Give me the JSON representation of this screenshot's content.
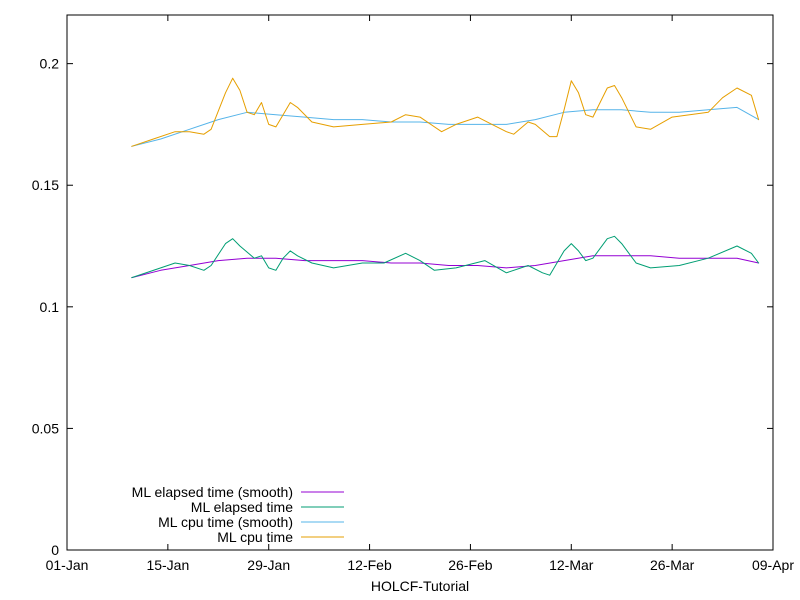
{
  "chart_data": {
    "type": "line",
    "title": "",
    "xlabel": "HOLCF-Tutorial",
    "ylabel": "",
    "x_axis": {
      "type": "date",
      "range": [
        "2014-01-01",
        "2014-04-09"
      ],
      "ticks": [
        {
          "date": "2014-01-01",
          "label": "01-Jan"
        },
        {
          "date": "2014-01-15",
          "label": "15-Jan"
        },
        {
          "date": "2014-01-29",
          "label": "29-Jan"
        },
        {
          "date": "2014-02-12",
          "label": "12-Feb"
        },
        {
          "date": "2014-02-26",
          "label": "26-Feb"
        },
        {
          "date": "2014-03-12",
          "label": "12-Mar"
        },
        {
          "date": "2014-03-26",
          "label": "26-Mar"
        },
        {
          "date": "2014-04-09",
          "label": "09-Apr"
        }
      ]
    },
    "y_axis": {
      "range": [
        0,
        0.22
      ],
      "ticks": [
        {
          "value": 0,
          "label": "0"
        },
        {
          "value": 0.05,
          "label": "0.05"
        },
        {
          "value": 0.1,
          "label": "0.1"
        },
        {
          "value": 0.15,
          "label": "0.15"
        },
        {
          "value": 0.2,
          "label": "0.2"
        }
      ]
    },
    "grid": false,
    "legend_position": "bottom-left",
    "series": [
      {
        "name": "ML elapsed time (smooth)",
        "color": "#9400d3",
        "points": [
          [
            "2014-01-10",
            0.112
          ],
          [
            "2014-01-14",
            0.115
          ],
          [
            "2014-01-18",
            0.117
          ],
          [
            "2014-01-22",
            0.119
          ],
          [
            "2014-01-26",
            0.12
          ],
          [
            "2014-01-30",
            0.12
          ],
          [
            "2014-02-03",
            0.119
          ],
          [
            "2014-02-07",
            0.119
          ],
          [
            "2014-02-11",
            0.119
          ],
          [
            "2014-02-15",
            0.118
          ],
          [
            "2014-02-19",
            0.118
          ],
          [
            "2014-02-23",
            0.117
          ],
          [
            "2014-02-27",
            0.117
          ],
          [
            "2014-03-03",
            0.116
          ],
          [
            "2014-03-07",
            0.117
          ],
          [
            "2014-03-11",
            0.119
          ],
          [
            "2014-03-15",
            0.121
          ],
          [
            "2014-03-19",
            0.121
          ],
          [
            "2014-03-23",
            0.121
          ],
          [
            "2014-03-27",
            0.12
          ],
          [
            "2014-03-31",
            0.12
          ],
          [
            "2014-04-04",
            0.12
          ],
          [
            "2014-04-07",
            0.118
          ]
        ]
      },
      {
        "name": "ML elapsed time",
        "color": "#009e73",
        "points": [
          [
            "2014-01-10",
            0.112
          ],
          [
            "2014-01-14",
            0.116
          ],
          [
            "2014-01-16",
            0.118
          ],
          [
            "2014-01-18",
            0.117
          ],
          [
            "2014-01-20",
            0.115
          ],
          [
            "2014-01-21",
            0.117
          ],
          [
            "2014-01-23",
            0.126
          ],
          [
            "2014-01-24",
            0.128
          ],
          [
            "2014-01-25",
            0.125
          ],
          [
            "2014-01-27",
            0.12
          ],
          [
            "2014-01-28",
            0.121
          ],
          [
            "2014-01-29",
            0.116
          ],
          [
            "2014-01-30",
            0.115
          ],
          [
            "2014-01-31",
            0.12
          ],
          [
            "2014-02-01",
            0.123
          ],
          [
            "2014-02-02",
            0.121
          ],
          [
            "2014-02-04",
            0.118
          ],
          [
            "2014-02-07",
            0.116
          ],
          [
            "2014-02-11",
            0.118
          ],
          [
            "2014-02-14",
            0.118
          ],
          [
            "2014-02-17",
            0.122
          ],
          [
            "2014-02-19",
            0.119
          ],
          [
            "2014-02-21",
            0.115
          ],
          [
            "2014-02-24",
            0.116
          ],
          [
            "2014-02-28",
            0.119
          ],
          [
            "2014-03-03",
            0.114
          ],
          [
            "2014-03-06",
            0.117
          ],
          [
            "2014-03-08",
            0.114
          ],
          [
            "2014-03-09",
            0.113
          ],
          [
            "2014-03-11",
            0.123
          ],
          [
            "2014-03-12",
            0.126
          ],
          [
            "2014-03-13",
            0.123
          ],
          [
            "2014-03-14",
            0.119
          ],
          [
            "2014-03-15",
            0.12
          ],
          [
            "2014-03-17",
            0.128
          ],
          [
            "2014-03-18",
            0.129
          ],
          [
            "2014-03-19",
            0.126
          ],
          [
            "2014-03-21",
            0.118
          ],
          [
            "2014-03-23",
            0.116
          ],
          [
            "2014-03-27",
            0.117
          ],
          [
            "2014-03-31",
            0.12
          ],
          [
            "2014-04-04",
            0.125
          ],
          [
            "2014-04-06",
            0.122
          ],
          [
            "2014-04-07",
            0.118
          ]
        ]
      },
      {
        "name": "ML cpu time (smooth)",
        "color": "#56b4e9",
        "points": [
          [
            "2014-01-10",
            0.166
          ],
          [
            "2014-01-14",
            0.169
          ],
          [
            "2014-01-18",
            0.173
          ],
          [
            "2014-01-22",
            0.177
          ],
          [
            "2014-01-26",
            0.18
          ],
          [
            "2014-01-30",
            0.179
          ],
          [
            "2014-02-03",
            0.178
          ],
          [
            "2014-02-07",
            0.177
          ],
          [
            "2014-02-11",
            0.177
          ],
          [
            "2014-02-15",
            0.176
          ],
          [
            "2014-02-19",
            0.176
          ],
          [
            "2014-02-23",
            0.175
          ],
          [
            "2014-02-27",
            0.175
          ],
          [
            "2014-03-03",
            0.175
          ],
          [
            "2014-03-07",
            0.177
          ],
          [
            "2014-03-11",
            0.18
          ],
          [
            "2014-03-15",
            0.181
          ],
          [
            "2014-03-19",
            0.181
          ],
          [
            "2014-03-23",
            0.18
          ],
          [
            "2014-03-27",
            0.18
          ],
          [
            "2014-03-31",
            0.181
          ],
          [
            "2014-04-04",
            0.182
          ],
          [
            "2014-04-07",
            0.177
          ]
        ]
      },
      {
        "name": "ML cpu time",
        "color": "#e69f00",
        "points": [
          [
            "2014-01-10",
            0.166
          ],
          [
            "2014-01-13",
            0.169
          ],
          [
            "2014-01-16",
            0.172
          ],
          [
            "2014-01-18",
            0.172
          ],
          [
            "2014-01-20",
            0.171
          ],
          [
            "2014-01-21",
            0.173
          ],
          [
            "2014-01-23",
            0.188
          ],
          [
            "2014-01-24",
            0.194
          ],
          [
            "2014-01-25",
            0.189
          ],
          [
            "2014-01-26",
            0.18
          ],
          [
            "2014-01-27",
            0.179
          ],
          [
            "2014-01-28",
            0.184
          ],
          [
            "2014-01-29",
            0.175
          ],
          [
            "2014-01-30",
            0.174
          ],
          [
            "2014-01-31",
            0.179
          ],
          [
            "2014-02-01",
            0.184
          ],
          [
            "2014-02-02",
            0.182
          ],
          [
            "2014-02-04",
            0.176
          ],
          [
            "2014-02-07",
            0.174
          ],
          [
            "2014-02-11",
            0.175
          ],
          [
            "2014-02-15",
            0.176
          ],
          [
            "2014-02-17",
            0.179
          ],
          [
            "2014-02-19",
            0.178
          ],
          [
            "2014-02-22",
            0.172
          ],
          [
            "2014-02-24",
            0.175
          ],
          [
            "2014-02-27",
            0.178
          ],
          [
            "2014-03-01",
            0.175
          ],
          [
            "2014-03-03",
            0.172
          ],
          [
            "2014-03-04",
            0.171
          ],
          [
            "2014-03-06",
            0.176
          ],
          [
            "2014-03-07",
            0.175
          ],
          [
            "2014-03-09",
            0.17
          ],
          [
            "2014-03-10",
            0.17
          ],
          [
            "2014-03-11",
            0.181
          ],
          [
            "2014-03-12",
            0.193
          ],
          [
            "2014-03-13",
            0.188
          ],
          [
            "2014-03-14",
            0.179
          ],
          [
            "2014-03-15",
            0.178
          ],
          [
            "2014-03-16",
            0.184
          ],
          [
            "2014-03-17",
            0.19
          ],
          [
            "2014-03-18",
            0.191
          ],
          [
            "2014-03-19",
            0.186
          ],
          [
            "2014-03-21",
            0.174
          ],
          [
            "2014-03-23",
            0.173
          ],
          [
            "2014-03-26",
            0.178
          ],
          [
            "2014-03-31",
            0.18
          ],
          [
            "2014-04-02",
            0.186
          ],
          [
            "2014-04-04",
            0.19
          ],
          [
            "2014-04-06",
            0.187
          ],
          [
            "2014-04-07",
            0.177
          ]
        ]
      }
    ]
  }
}
